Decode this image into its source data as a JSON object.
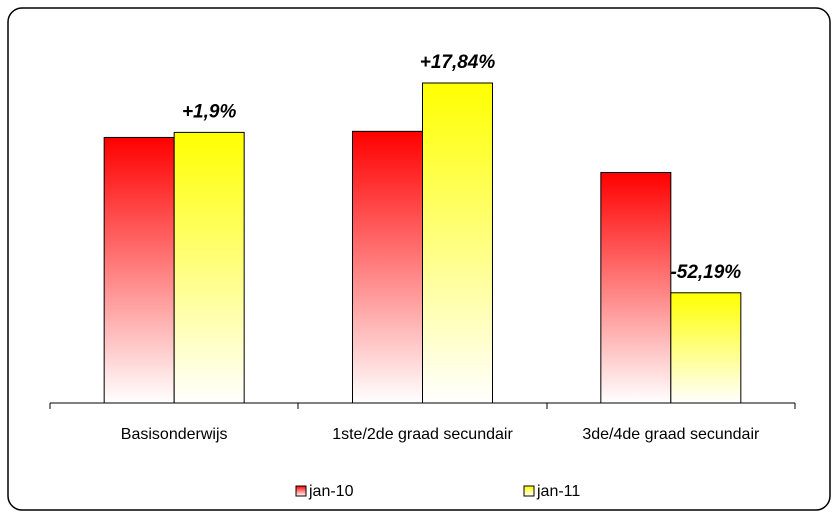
{
  "chart_data": {
    "type": "bar",
    "categories": [
      "Basisonderwijs",
      "1ste/2de graad secundair",
      "3de/4de graad secundair"
    ],
    "series": [
      {
        "name": "jan-10",
        "color": "#ff0000",
        "values": [
          100,
          102.3,
          86.8
        ]
      },
      {
        "name": "jan-11",
        "color": "#ffff00",
        "values": [
          101.9,
          120.5,
          41.5
        ]
      }
    ],
    "annotations": [
      "+1,9%",
      "+17,84%",
      "-52,19%"
    ]
  }
}
